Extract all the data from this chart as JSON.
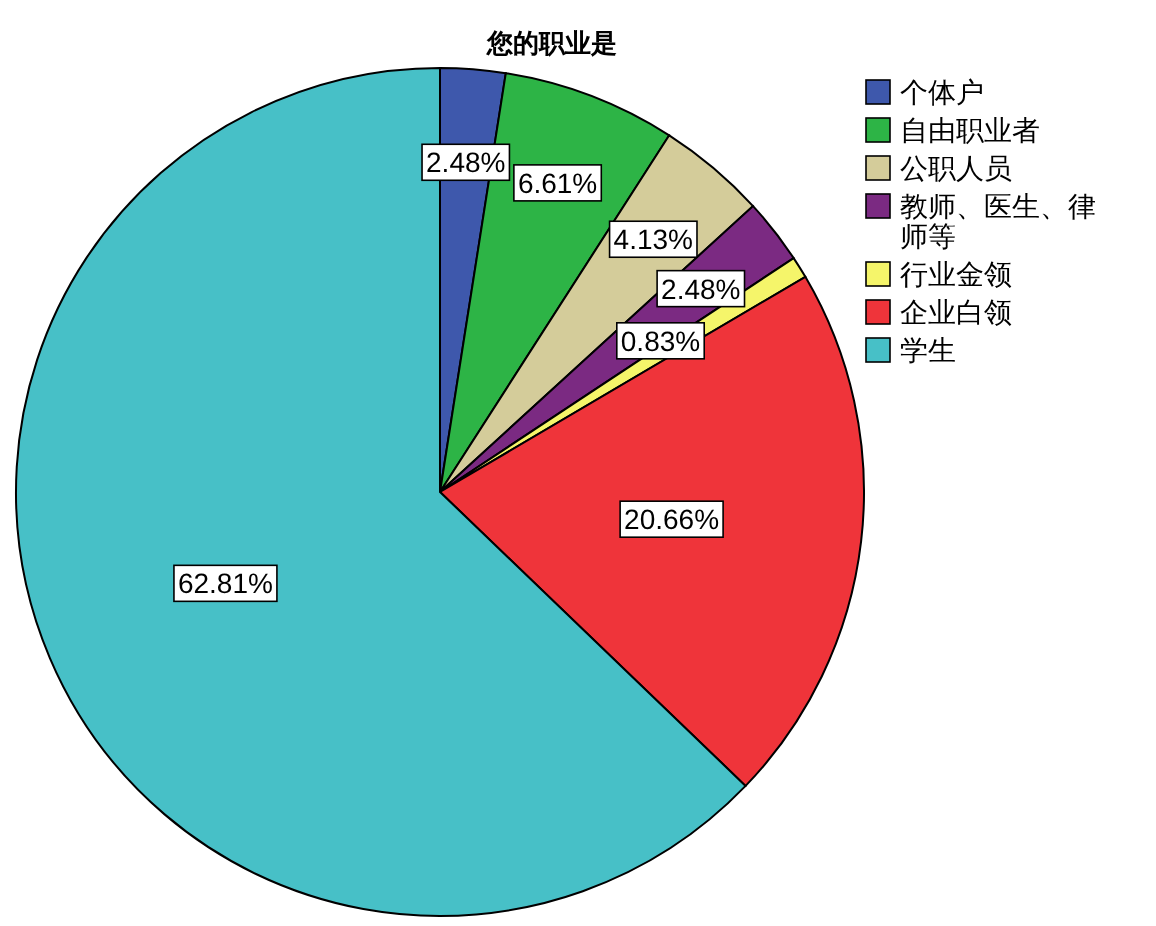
{
  "chart_data": {
    "type": "pie",
    "title": "您的职业是",
    "categories": [
      "个体户",
      "自由职业者",
      "公职人员",
      "教师、医生、律师等",
      "行业金领",
      "企业白领",
      "学生"
    ],
    "values": [
      2.48,
      6.61,
      4.13,
      2.48,
      0.83,
      20.66,
      62.81
    ],
    "colors": [
      "#3e58ac",
      "#2db446",
      "#d4cc9a",
      "#7b2a82",
      "#f5f56a",
      "#ef343a",
      "#47c0c7"
    ],
    "value_labels": [
      "2.48%",
      "6.61%",
      "4.13%",
      "2.48%",
      "0.83%",
      "20.66%",
      "62.81%"
    ],
    "legend": "right"
  }
}
